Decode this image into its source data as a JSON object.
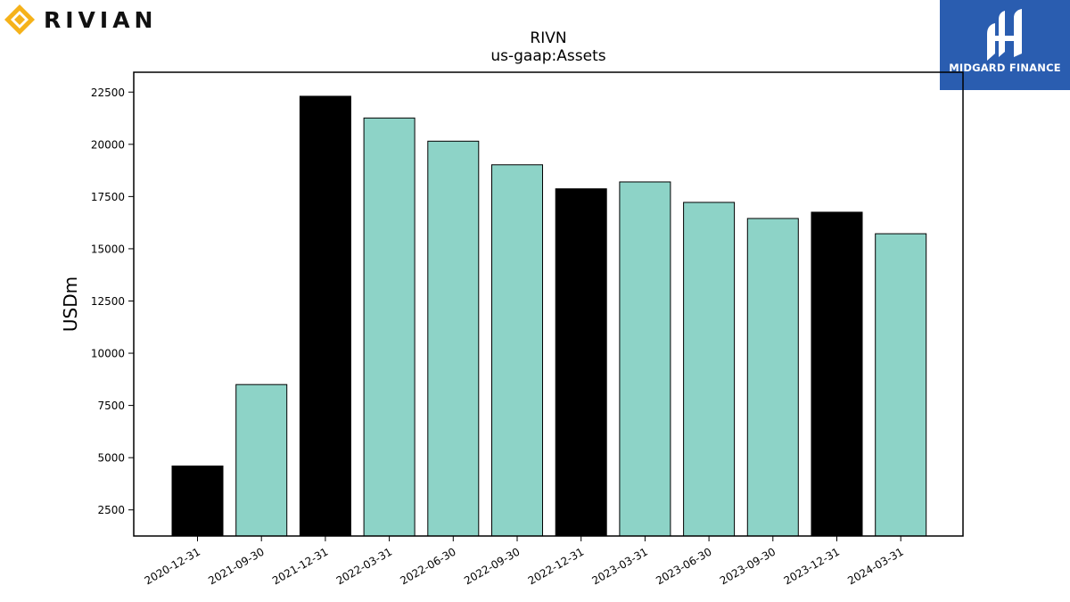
{
  "logos": {
    "left": {
      "text": "RIVIAN",
      "accent": "#f5b21a"
    },
    "right": {
      "text": "MIDGARD FINANCE",
      "background": "#2a5db0"
    }
  },
  "chart_data": {
    "type": "bar",
    "title": "RIVN",
    "subtitle": "us-gaap:Assets",
    "xlabel": "",
    "ylabel": "USDm",
    "categories": [
      "2020-12-31",
      "2021-09-30",
      "2021-12-31",
      "2022-03-31",
      "2022-06-30",
      "2022-09-30",
      "2022-12-31",
      "2023-03-31",
      "2023-06-30",
      "2023-09-30",
      "2023-12-31",
      "2024-03-31"
    ],
    "values": [
      4600,
      8500,
      22300,
      21260,
      20150,
      19020,
      17870,
      18200,
      17220,
      16450,
      16750,
      15720
    ],
    "bar_colors": [
      "#000000",
      "#8dd3c7",
      "#000000",
      "#8dd3c7",
      "#8dd3c7",
      "#8dd3c7",
      "#000000",
      "#8dd3c7",
      "#8dd3c7",
      "#8dd3c7",
      "#000000",
      "#8dd3c7"
    ],
    "yticks": [
      2500,
      5000,
      7500,
      10000,
      12500,
      15000,
      17500,
      20000,
      22500
    ],
    "ylim": [
      1250,
      23450
    ],
    "grid": false,
    "legend": "none"
  }
}
